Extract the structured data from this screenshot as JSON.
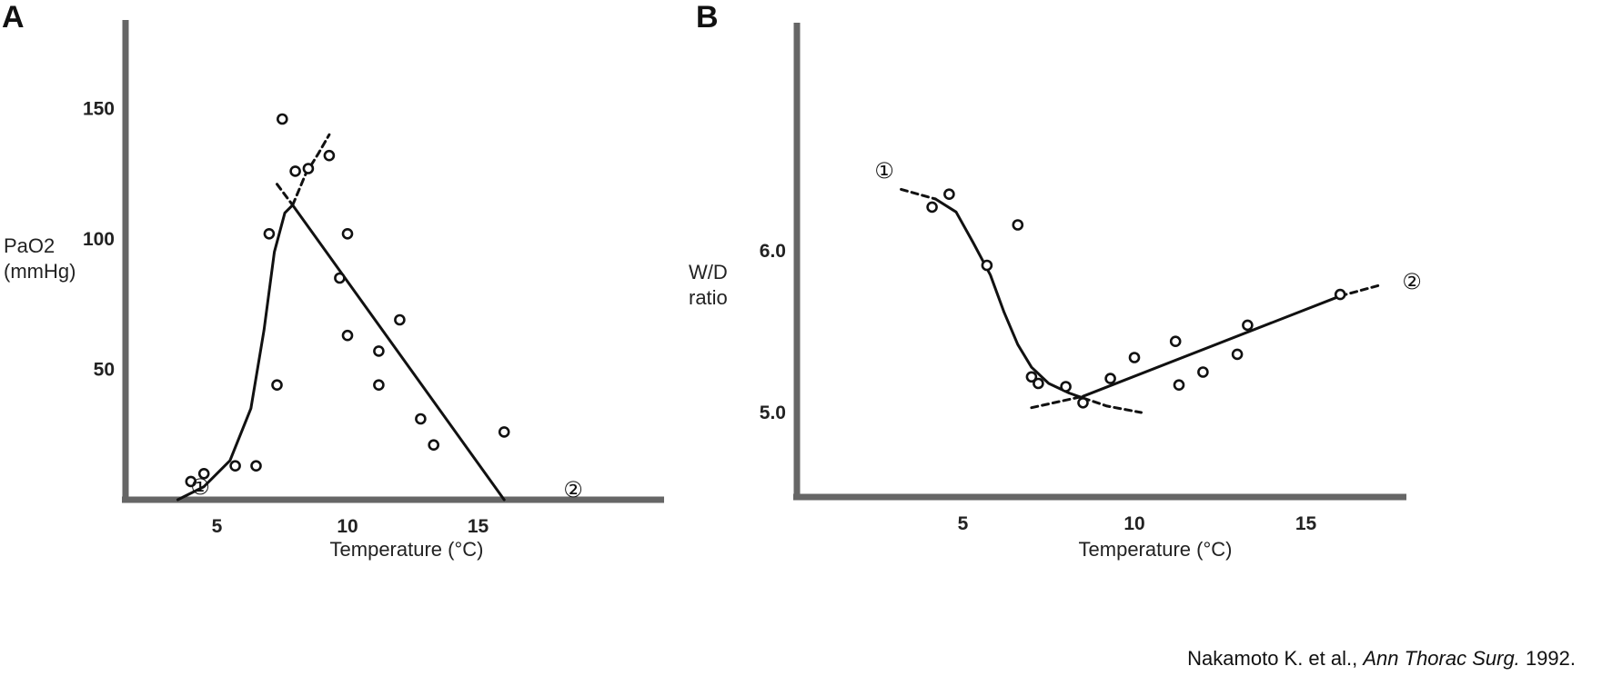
{
  "chart_data": [
    {
      "panel": "A",
      "type": "scatter",
      "ylabel_lines": [
        "PaO2",
        "(mmHg)"
      ],
      "xlabel": "Temperature (°C)",
      "xlim": [
        0,
        20
      ],
      "ylim": [
        0,
        185
      ],
      "x_ticks": [
        "5",
        "10",
        "15"
      ],
      "y_ticks": [
        "50",
        "100",
        "150"
      ],
      "start_marker": "①",
      "end_marker": "②",
      "points": [
        {
          "x": 4.0,
          "y": 7
        },
        {
          "x": 4.5,
          "y": 10
        },
        {
          "x": 5.7,
          "y": 13
        },
        {
          "x": 6.5,
          "y": 13
        },
        {
          "x": 7.0,
          "y": 102
        },
        {
          "x": 7.3,
          "y": 44
        },
        {
          "x": 7.5,
          "y": 146
        },
        {
          "x": 8.0,
          "y": 126
        },
        {
          "x": 8.5,
          "y": 127
        },
        {
          "x": 9.3,
          "y": 132
        },
        {
          "x": 9.7,
          "y": 85
        },
        {
          "x": 10.0,
          "y": 102
        },
        {
          "x": 10.0,
          "y": 63
        },
        {
          "x": 11.2,
          "y": 57
        },
        {
          "x": 11.2,
          "y": 44
        },
        {
          "x": 12.0,
          "y": 69
        },
        {
          "x": 12.8,
          "y": 31
        },
        {
          "x": 13.3,
          "y": 21
        },
        {
          "x": 16.0,
          "y": 26
        }
      ],
      "curves": [
        {
          "style": "solid",
          "points": [
            [
              3.5,
              0
            ],
            [
              4.5,
              5
            ],
            [
              5.5,
              15
            ],
            [
              6.3,
              35
            ],
            [
              6.8,
              65
            ],
            [
              7.2,
              95
            ],
            [
              7.6,
              110
            ],
            [
              7.9,
              113
            ]
          ]
        },
        {
          "style": "dashed",
          "points": [
            [
              7.9,
              113
            ],
            [
              8.4,
              125
            ],
            [
              8.9,
              133
            ],
            [
              9.3,
              140
            ]
          ]
        },
        {
          "style": "dashed",
          "points": [
            [
              7.3,
              121
            ],
            [
              7.9,
              113
            ]
          ]
        },
        {
          "style": "solid",
          "points": [
            [
              7.9,
              113
            ],
            [
              16.0,
              0
            ]
          ]
        }
      ]
    },
    {
      "panel": "B",
      "type": "scatter",
      "ylabel_lines": [
        "W/D",
        "ratio"
      ],
      "xlabel": "Temperature (°C)",
      "xlim": [
        0,
        19
      ],
      "ylim": [
        4.5,
        7.0
      ],
      "x_ticks": [
        "5",
        "10",
        "15"
      ],
      "y_ticks": [
        "5.0",
        "6.0"
      ],
      "start_marker": "①",
      "end_marker": "②",
      "points": [
        {
          "x": 4.1,
          "y": 6.27
        },
        {
          "x": 4.6,
          "y": 6.35
        },
        {
          "x": 5.7,
          "y": 5.91
        },
        {
          "x": 6.6,
          "y": 6.16
        },
        {
          "x": 7.0,
          "y": 5.22
        },
        {
          "x": 7.2,
          "y": 5.18
        },
        {
          "x": 8.0,
          "y": 5.16
        },
        {
          "x": 8.5,
          "y": 5.06
        },
        {
          "x": 9.3,
          "y": 5.21
        },
        {
          "x": 10.0,
          "y": 5.34
        },
        {
          "x": 11.2,
          "y": 5.44
        },
        {
          "x": 11.3,
          "y": 5.17
        },
        {
          "x": 12.0,
          "y": 5.25
        },
        {
          "x": 13.0,
          "y": 5.36
        },
        {
          "x": 13.3,
          "y": 5.54
        },
        {
          "x": 16.0,
          "y": 5.73
        }
      ],
      "curves": [
        {
          "style": "dashed",
          "points": [
            [
              3.2,
              6.38
            ],
            [
              4.2,
              6.32
            ]
          ]
        },
        {
          "style": "solid",
          "points": [
            [
              4.2,
              6.32
            ],
            [
              4.8,
              6.24
            ],
            [
              5.3,
              6.05
            ],
            [
              5.8,
              5.85
            ],
            [
              6.2,
              5.62
            ],
            [
              6.6,
              5.42
            ],
            [
              7.0,
              5.28
            ],
            [
              7.5,
              5.18
            ],
            [
              8.1,
              5.12
            ],
            [
              8.5,
              5.09
            ]
          ]
        },
        {
          "style": "dashed",
          "points": [
            [
              8.5,
              5.09
            ],
            [
              9.2,
              5.04
            ],
            [
              10.2,
              5.0
            ]
          ]
        },
        {
          "style": "dashed",
          "points": [
            [
              7.0,
              5.03
            ],
            [
              8.5,
              5.1
            ]
          ]
        },
        {
          "style": "solid",
          "points": [
            [
              8.5,
              5.1
            ],
            [
              16.0,
              5.72
            ]
          ]
        },
        {
          "style": "dashed",
          "points": [
            [
              16.0,
              5.72
            ],
            [
              17.2,
              5.79
            ]
          ]
        }
      ]
    }
  ],
  "citation": {
    "authors": "Nakamoto K. et al.,",
    "journal": "Ann Thorac Surg.",
    "year": "1992."
  }
}
